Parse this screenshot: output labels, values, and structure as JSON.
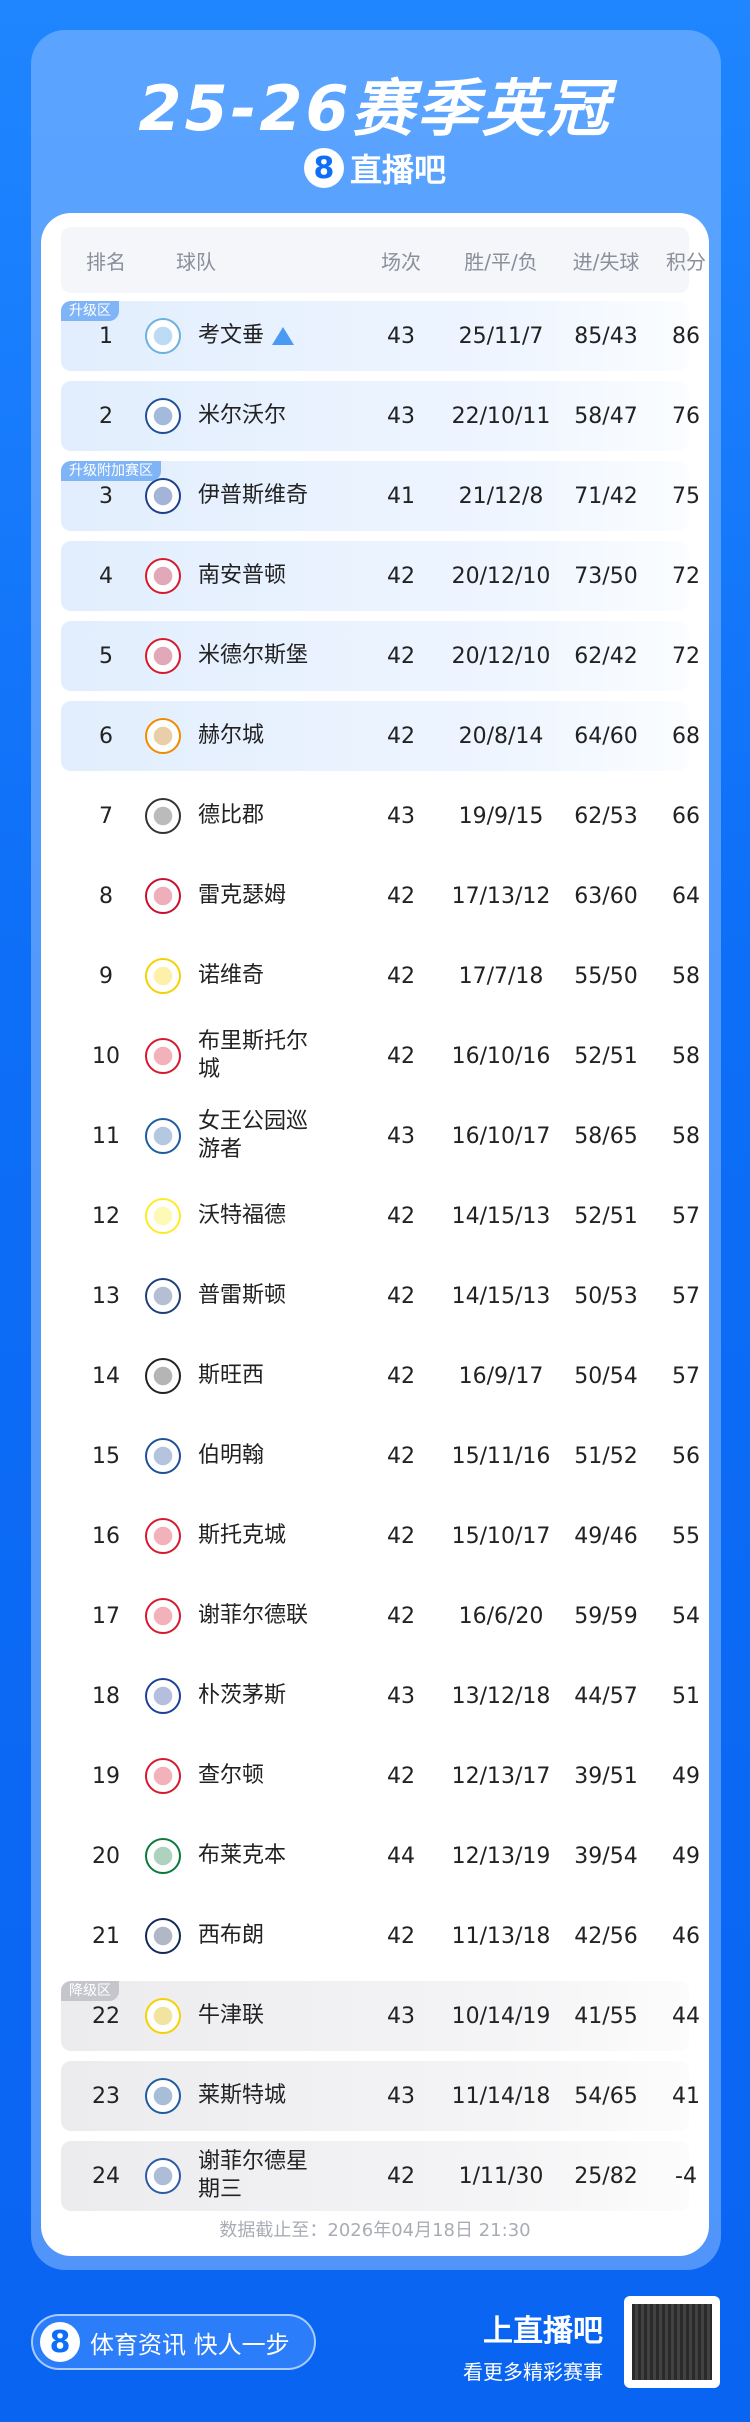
{
  "title": "25-26赛季英冠",
  "brand": {
    "logo_char": "8",
    "name": "直播吧"
  },
  "colors": {
    "background": "#0d6ef7",
    "promotion_row": "#e2eefd",
    "relegation_row": "#ececee",
    "promotion_badge": "#7fb4f7",
    "relegation_badge": "#c4c6cc"
  },
  "columns": [
    "排名",
    "球队",
    "场次",
    "胜/平/负",
    "进/失球",
    "积分"
  ],
  "rows": [
    {
      "rank": "1",
      "team": "考文垂",
      "played": "43",
      "wdl": "25/11/7",
      "goals": "85/43",
      "pts": "86",
      "zone": "升级区",
      "trend": "up-arrow-icon"
    },
    {
      "rank": "2",
      "team": "米尔沃尔",
      "played": "43",
      "wdl": "22/10/11",
      "goals": "58/47",
      "pts": "76"
    },
    {
      "rank": "3",
      "team": "伊普斯维奇",
      "played": "41",
      "wdl": "21/12/8",
      "goals": "71/42",
      "pts": "75",
      "zone": "升级附加赛区"
    },
    {
      "rank": "4",
      "team": "南安普顿",
      "played": "42",
      "wdl": "20/12/10",
      "goals": "73/50",
      "pts": "72"
    },
    {
      "rank": "5",
      "team": "米德尔斯堡",
      "played": "42",
      "wdl": "20/12/10",
      "goals": "62/42",
      "pts": "72"
    },
    {
      "rank": "6",
      "team": "赫尔城",
      "played": "42",
      "wdl": "20/8/14",
      "goals": "64/60",
      "pts": "68"
    },
    {
      "rank": "7",
      "team": "德比郡",
      "played": "43",
      "wdl": "19/9/15",
      "goals": "62/53",
      "pts": "66"
    },
    {
      "rank": "8",
      "team": "雷克瑟姆",
      "played": "42",
      "wdl": "17/13/12",
      "goals": "63/60",
      "pts": "64"
    },
    {
      "rank": "9",
      "team": "诺维奇",
      "played": "42",
      "wdl": "17/7/18",
      "goals": "55/50",
      "pts": "58"
    },
    {
      "rank": "10",
      "team": "布里斯托尔城",
      "played": "42",
      "wdl": "16/10/16",
      "goals": "52/51",
      "pts": "58"
    },
    {
      "rank": "11",
      "team": "女王公园巡游者",
      "played": "43",
      "wdl": "16/10/17",
      "goals": "58/65",
      "pts": "58"
    },
    {
      "rank": "12",
      "team": "沃特福德",
      "played": "42",
      "wdl": "14/15/13",
      "goals": "52/51",
      "pts": "57"
    },
    {
      "rank": "13",
      "team": "普雷斯顿",
      "played": "42",
      "wdl": "14/15/13",
      "goals": "50/53",
      "pts": "57"
    },
    {
      "rank": "14",
      "team": "斯旺西",
      "played": "42",
      "wdl": "16/9/17",
      "goals": "50/54",
      "pts": "57"
    },
    {
      "rank": "15",
      "team": "伯明翰",
      "played": "42",
      "wdl": "15/11/16",
      "goals": "51/52",
      "pts": "56"
    },
    {
      "rank": "16",
      "team": "斯托克城",
      "played": "42",
      "wdl": "15/10/17",
      "goals": "49/46",
      "pts": "55"
    },
    {
      "rank": "17",
      "team": "谢菲尔德联",
      "played": "42",
      "wdl": "16/6/20",
      "goals": "59/59",
      "pts": "54"
    },
    {
      "rank": "18",
      "team": "朴茨茅斯",
      "played": "43",
      "wdl": "13/12/18",
      "goals": "44/57",
      "pts": "51"
    },
    {
      "rank": "19",
      "team": "查尔顿",
      "played": "42",
      "wdl": "12/13/17",
      "goals": "39/51",
      "pts": "49"
    },
    {
      "rank": "20",
      "team": "布莱克本",
      "played": "44",
      "wdl": "12/13/19",
      "goals": "39/54",
      "pts": "49"
    },
    {
      "rank": "21",
      "team": "西布朗",
      "played": "42",
      "wdl": "11/13/18",
      "goals": "42/56",
      "pts": "46"
    },
    {
      "rank": "22",
      "team": "牛津联",
      "played": "43",
      "wdl": "10/14/19",
      "goals": "41/55",
      "pts": "44",
      "zone": "降级区"
    },
    {
      "rank": "23",
      "team": "莱斯特城",
      "played": "43",
      "wdl": "11/14/18",
      "goals": "54/65",
      "pts": "41"
    },
    {
      "rank": "24",
      "team": "谢菲尔德星期三",
      "played": "42",
      "wdl": "1/11/30",
      "goals": "25/82",
      "pts": "-4"
    }
  ],
  "logo_colors": [
    "#6ab0e0",
    "#1f4f9c",
    "#1d3f8f",
    "#d7192d",
    "#d7192d",
    "#f08a00",
    "#333333",
    "#c8102e",
    "#f5d100",
    "#d7192d",
    "#1d5ba4",
    "#fbec23",
    "#1f3f7a",
    "#222222",
    "#1d4f9c",
    "#d7192d",
    "#d7192d",
    "#1f3f9c",
    "#d7192d",
    "#0a7a3b",
    "#13295a",
    "#f5d100",
    "#1d5ba4",
    "#2b5ba8"
  ],
  "timestamp": "数据截止至：2026年04月18日 21:30",
  "footer": {
    "slogan": "体育资讯 快人一步",
    "cta_title": "上直播吧",
    "cta_sub": "看更多精彩赛事"
  }
}
